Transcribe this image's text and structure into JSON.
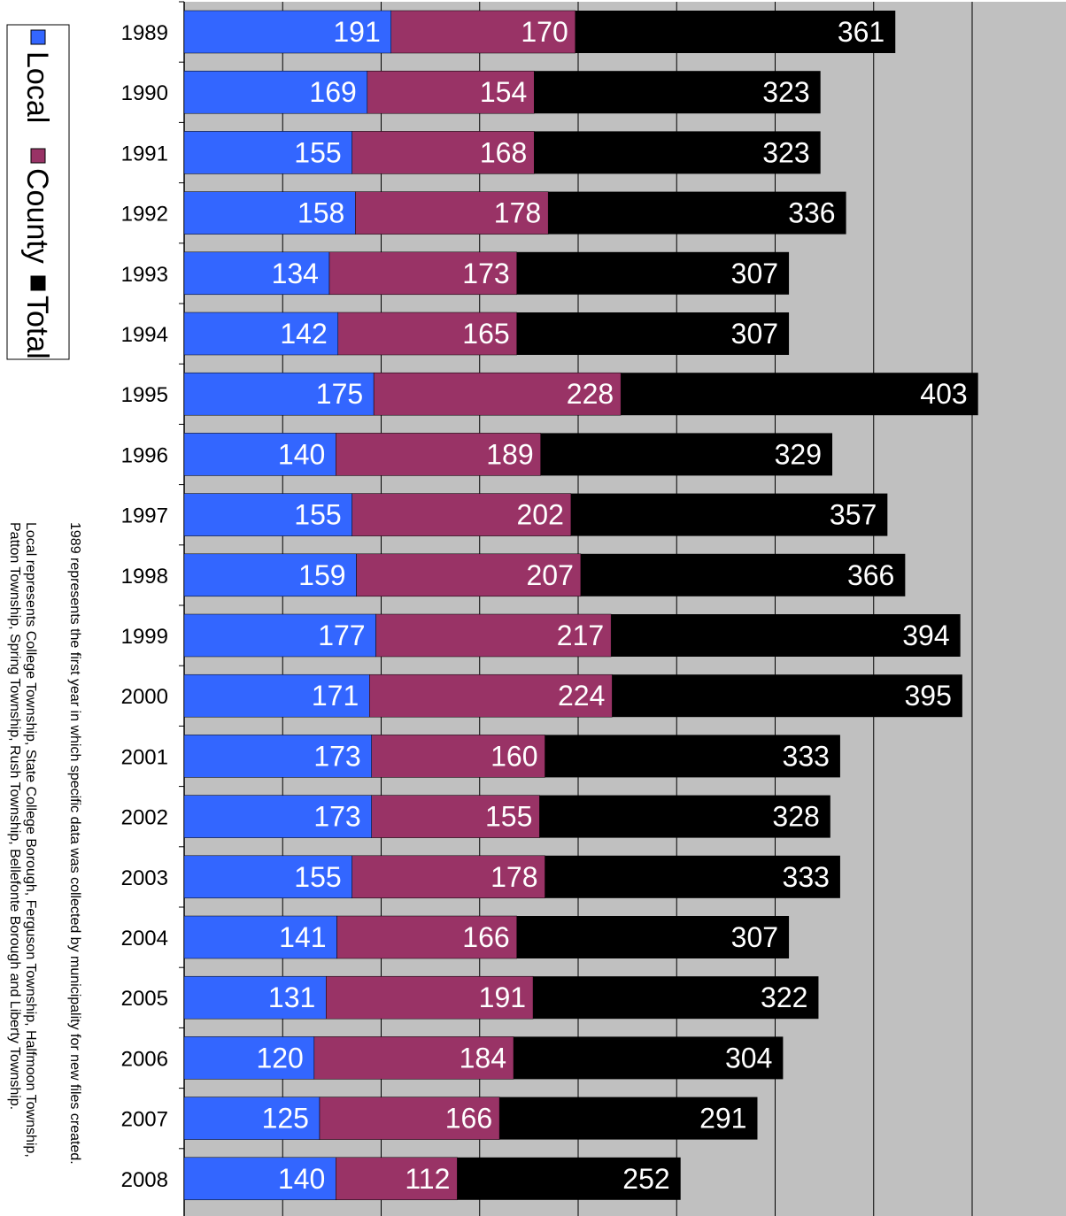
{
  "chart_data": {
    "type": "bar",
    "orientation": "horizontal",
    "categories": [
      "1989",
      "1990",
      "1991",
      "1992",
      "1993",
      "1994",
      "1995",
      "1996",
      "1997",
      "1998",
      "1999",
      "2000",
      "2001",
      "2002",
      "2003",
      "2004",
      "2005",
      "2006",
      "2007",
      "2008"
    ],
    "series": [
      {
        "name": "Local",
        "color": "#3366ff",
        "values": [
          191,
          169,
          155,
          158,
          134,
          142,
          175,
          140,
          155,
          159,
          177,
          171,
          173,
          173,
          155,
          141,
          131,
          120,
          125,
          140
        ]
      },
      {
        "name": "County",
        "color": "#993366",
        "values": [
          170,
          154,
          168,
          178,
          173,
          165,
          228,
          189,
          202,
          207,
          217,
          224,
          160,
          155,
          178,
          166,
          191,
          184,
          166,
          112
        ]
      },
      {
        "name": "Total",
        "color": "#000000",
        "values": [
          361,
          323,
          323,
          336,
          307,
          307,
          403,
          329,
          357,
          366,
          394,
          395,
          333,
          328,
          333,
          307,
          322,
          304,
          291,
          252
        ]
      }
    ],
    "xlim": [
      0,
      450
    ],
    "grid": true,
    "legend_position": "left",
    "notes": [
      "1989 represents the first year in which specific data was collected by municipality for new files created.",
      "Local represents College Township, State College Borough, Ferguson Township, Halfmoon Township,",
      "Patton Township, Spring Township, Rush Township, Bellefonte Borough and Liberty Township."
    ]
  }
}
